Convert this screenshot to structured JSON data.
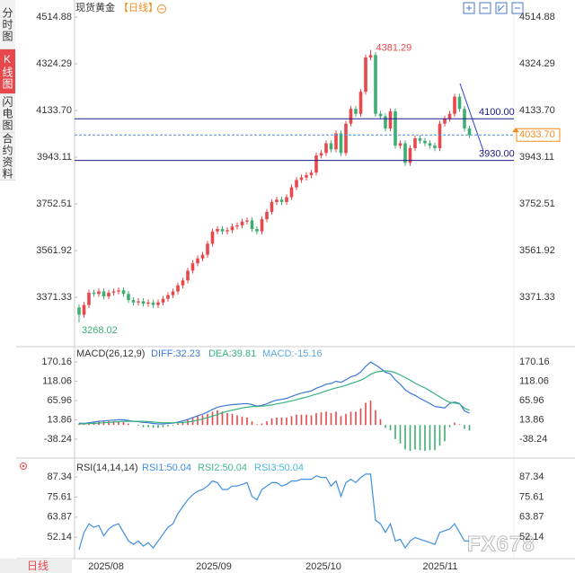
{
  "sidebar_tabs": [
    "分时图",
    "K线图",
    "闪电图",
    "合约资料"
  ],
  "bottom_tab": "日线",
  "watermark": "FX678",
  "x_labels": [
    "2025/08",
    "2025/09",
    "2025/10",
    "2025/11"
  ],
  "chart_data": [
    {
      "type": "candlestick",
      "title": "现货黄金",
      "period": "【日线】",
      "up_color": "#e8474b",
      "down_color": "#3fae72",
      "ylim": [
        3173.4,
        4566.2
      ],
      "yticks": [
        4514.88,
        4324.29,
        {
          "value": 4133.7,
          "label": "4133.70"
        },
        3943.11,
        3752.51,
        3561.92,
        3371.33
      ],
      "hlines": [
        {
          "value": 4100,
          "label": "4100.00"
        },
        {
          "value": 3930,
          "label": "3930.00"
        }
      ],
      "current": {
        "value": 4033.7,
        "label": "4033.70"
      },
      "open": [
        3330,
        3300,
        3340,
        3390,
        3385,
        3395,
        3375,
        3390,
        3395,
        3400,
        3385,
        3360,
        3350,
        3355,
        3345,
        3350,
        3340,
        3350,
        3365,
        3380,
        3395,
        3420,
        3440,
        3480,
        3510,
        3530,
        3545,
        3590,
        3640,
        3650,
        3640,
        3645,
        3660,
        3665,
        3680,
        3685,
        3650,
        3640,
        3690,
        3720,
        3760,
        3770,
        3760,
        3780,
        3820,
        3850,
        3860,
        3870,
        3880,
        3950,
        3960,
        4000,
        3975,
        4040,
        3960,
        4080,
        4140,
        4120,
        4210,
        4350,
        4360,
        4120,
        4110,
        4060,
        4130,
        3990,
        4000,
        3920,
        3980,
        4020,
        4010,
        4000,
        3990,
        3980,
        4080,
        4100,
        4120,
        4190,
        4140,
        4060
      ],
      "high": [
        3342,
        3352,
        3402,
        3402,
        3407,
        3407,
        3402,
        3407,
        3412,
        3412,
        3397,
        3372,
        3367,
        3367,
        3362,
        3362,
        3362,
        3377,
        3392,
        3407,
        3432,
        3452,
        3492,
        3522,
        3542,
        3557,
        3602,
        3652,
        3662,
        3662,
        3657,
        3672,
        3677,
        3692,
        3697,
        3697,
        3662,
        3702,
        3732,
        3772,
        3782,
        3782,
        3792,
        3832,
        3862,
        3872,
        3882,
        3892,
        3962,
        3972,
        4012,
        4012,
        4052,
        4052,
        4092,
        4152,
        4152,
        4222,
        4362,
        4381.29,
        4372,
        4132,
        4122,
        4142,
        4142,
        4012,
        4012,
        3992,
        4032,
        4032,
        4022,
        4012,
        4002,
        4092,
        4112,
        4132,
        4202,
        4202,
        4152,
        4072
      ],
      "low": [
        3268.02,
        3288,
        3328,
        3373,
        3373,
        3363,
        3363,
        3378,
        3383,
        3373,
        3348,
        3338,
        3338,
        3333,
        3333,
        3328,
        3328,
        3338,
        3353,
        3368,
        3383,
        3408,
        3428,
        3468,
        3498,
        3518,
        3533,
        3578,
        3628,
        3628,
        3628,
        3633,
        3648,
        3653,
        3668,
        3638,
        3628,
        3628,
        3678,
        3708,
        3748,
        3748,
        3748,
        3768,
        3808,
        3838,
        3848,
        3858,
        3868,
        3938,
        3948,
        3963,
        3963,
        3948,
        3948,
        4068,
        4108,
        4108,
        4198,
        4338,
        4108,
        4098,
        4048,
        4048,
        3978,
        3978,
        3908,
        3908,
        3968,
        3998,
        3988,
        3978,
        3968,
        3968,
        4068,
        4088,
        4108,
        4128,
        4048,
        4022
      ],
      "close": [
        3300,
        3340,
        3390,
        3385,
        3395,
        3375,
        3390,
        3395,
        3400,
        3385,
        3360,
        3350,
        3355,
        3345,
        3350,
        3340,
        3350,
        3365,
        3380,
        3395,
        3420,
        3440,
        3480,
        3510,
        3530,
        3545,
        3590,
        3640,
        3650,
        3640,
        3645,
        3660,
        3665,
        3680,
        3685,
        3650,
        3640,
        3690,
        3720,
        3760,
        3770,
        3760,
        3780,
        3820,
        3850,
        3860,
        3870,
        3880,
        3950,
        3960,
        4000,
        3975,
        4040,
        3960,
        4080,
        4140,
        4120,
        4210,
        4350,
        4360,
        4120,
        4110,
        4060,
        4130,
        3990,
        4000,
        3920,
        3980,
        4020,
        4010,
        4000,
        3990,
        3980,
        4080,
        4100,
        4120,
        4190,
        4140,
        4060,
        4033.7
      ]
    },
    {
      "type": "macd",
      "title": "MACD(26,12,9)",
      "ylim": [
        -96.5,
        206.5
      ],
      "yticks": [
        170.16,
        118.06,
        65.96,
        13.86,
        -38.24
      ],
      "up_color": "#e8474b",
      "down_color": "#3fae72",
      "series": [
        {
          "name": "DIFF:32.23",
          "color": "#3b78d8",
          "values": [
            5,
            4,
            6,
            8,
            10,
            11,
            12,
            13,
            14,
            14,
            12,
            10,
            9,
            7,
            6,
            4,
            3,
            3,
            4,
            5,
            8,
            11,
            15,
            20,
            25,
            29,
            35,
            42,
            48,
            51,
            53,
            55,
            56,
            57,
            58,
            55,
            51,
            53,
            57,
            63,
            67,
            69,
            72,
            77,
            82,
            86,
            89,
            92,
            99,
            104,
            110,
            112,
            118,
            115,
            122,
            130,
            134,
            143,
            158,
            170,
            162,
            153,
            142,
            138,
            122,
            110,
            95,
            86,
            80,
            72,
            65,
            58,
            50,
            48,
            46,
            58,
            62,
            58,
            38,
            32.23
          ]
        },
        {
          "name": "DEA:39.81",
          "color": "#36b37e",
          "values": [
            3,
            3,
            4,
            4,
            5,
            6,
            7,
            8,
            9,
            10,
            10,
            10,
            10,
            10,
            9,
            8,
            7,
            6,
            6,
            6,
            6,
            7,
            8,
            10,
            13,
            16,
            20,
            24,
            28,
            33,
            37,
            40,
            43,
            46,
            48,
            50,
            50,
            51,
            52,
            54,
            57,
            59,
            62,
            65,
            68,
            72,
            75,
            79,
            83,
            87,
            92,
            96,
            100,
            103,
            107,
            112,
            116,
            121,
            128,
            137,
            142,
            145,
            146,
            145,
            141,
            135,
            128,
            121,
            113,
            106,
            100,
            92,
            84,
            76,
            68,
            61,
            59,
            57,
            45,
            39.81
          ]
        },
        {
          "name": "MACD:-15.16",
          "color": "#5aa9e6",
          "values": [
            4,
            2,
            4,
            8,
            10,
            10,
            10,
            10,
            10,
            8,
            4,
            0,
            -2,
            -6,
            -6,
            -8,
            -8,
            -6,
            -4,
            -2,
            4,
            8,
            14,
            20,
            24,
            26,
            30,
            36,
            40,
            36,
            32,
            30,
            26,
            22,
            20,
            10,
            2,
            4,
            10,
            18,
            20,
            20,
            20,
            24,
            28,
            28,
            28,
            26,
            32,
            34,
            36,
            32,
            36,
            24,
            30,
            36,
            36,
            44,
            60,
            66,
            40,
            16,
            -8,
            -14,
            -38,
            -50,
            -66,
            -70,
            -66,
            -68,
            -70,
            -68,
            -68,
            -56,
            -44,
            -6,
            6,
            2,
            -10,
            -15.16
          ]
        }
      ]
    },
    {
      "type": "rsi",
      "title": "RSI(14,14,14)",
      "ylim": [
        39.7,
        97.3
      ],
      "yticks": [
        87.34,
        75.61,
        63.87,
        52.14
      ],
      "series": [
        {
          "name": "RSI1:50.04",
          "color": "#3f8fe0",
          "values": [
            45,
            55,
            60,
            58,
            59,
            53,
            57,
            59,
            60,
            55,
            50,
            48,
            50,
            47,
            49,
            46,
            50,
            54,
            58,
            60,
            66,
            70,
            74,
            77,
            79,
            80,
            82,
            85,
            84,
            80,
            80,
            82,
            82,
            83,
            84,
            76,
            74,
            80,
            82,
            84,
            84,
            82,
            83,
            85,
            85,
            86,
            86,
            86,
            88,
            87,
            87,
            82,
            85,
            76,
            84,
            86,
            84,
            87,
            89,
            89,
            62,
            60,
            55,
            60,
            50,
            51,
            46,
            50,
            52,
            51,
            50,
            49,
            48,
            55,
            56,
            57,
            60,
            55,
            50,
            50.04
          ]
        },
        {
          "name": "RSI2:50.04",
          "color": "#45b98a"
        },
        {
          "name": "RSI3:50.04",
          "color": "#4db8d8"
        }
      ]
    }
  ]
}
